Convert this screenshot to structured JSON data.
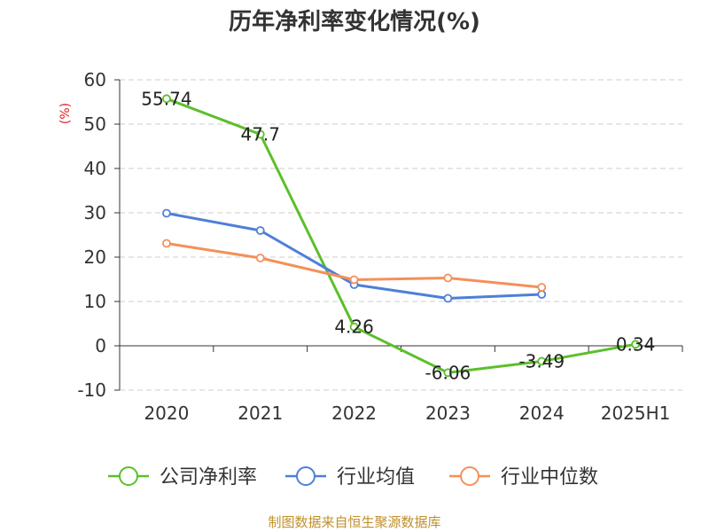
{
  "chart_data": {
    "type": "line",
    "title": "历年净利率变化情况(%)",
    "ylabel": "(%)",
    "xlabel": "",
    "categories": [
      "2020",
      "2021",
      "2022",
      "2023",
      "2024",
      "2025H1"
    ],
    "ylim": [
      -10,
      60
    ],
    "yticks": [
      -10,
      0,
      10,
      20,
      30,
      40,
      50,
      60
    ],
    "grid": true,
    "legend_position": "bottom",
    "series": [
      {
        "name": "公司净利率",
        "color": "#5cbf2a",
        "values": [
          55.74,
          47.7,
          4.26,
          -6.06,
          -3.49,
          0.34
        ],
        "show_labels": true
      },
      {
        "name": "行业均值",
        "color": "#4e7fd8",
        "values": [
          29.9,
          26.0,
          13.8,
          10.7,
          11.6,
          null
        ],
        "show_labels": false
      },
      {
        "name": "行业中位数",
        "color": "#f4905a",
        "values": [
          23.1,
          19.8,
          14.9,
          15.3,
          13.2,
          null
        ],
        "show_labels": false
      }
    ],
    "data_labels": [
      "55.74",
      "47.7",
      "4.26",
      "-6.06",
      "-3.49",
      "0.34"
    ]
  },
  "footer": {
    "source": "制图数据来自恒生聚源数据库"
  }
}
